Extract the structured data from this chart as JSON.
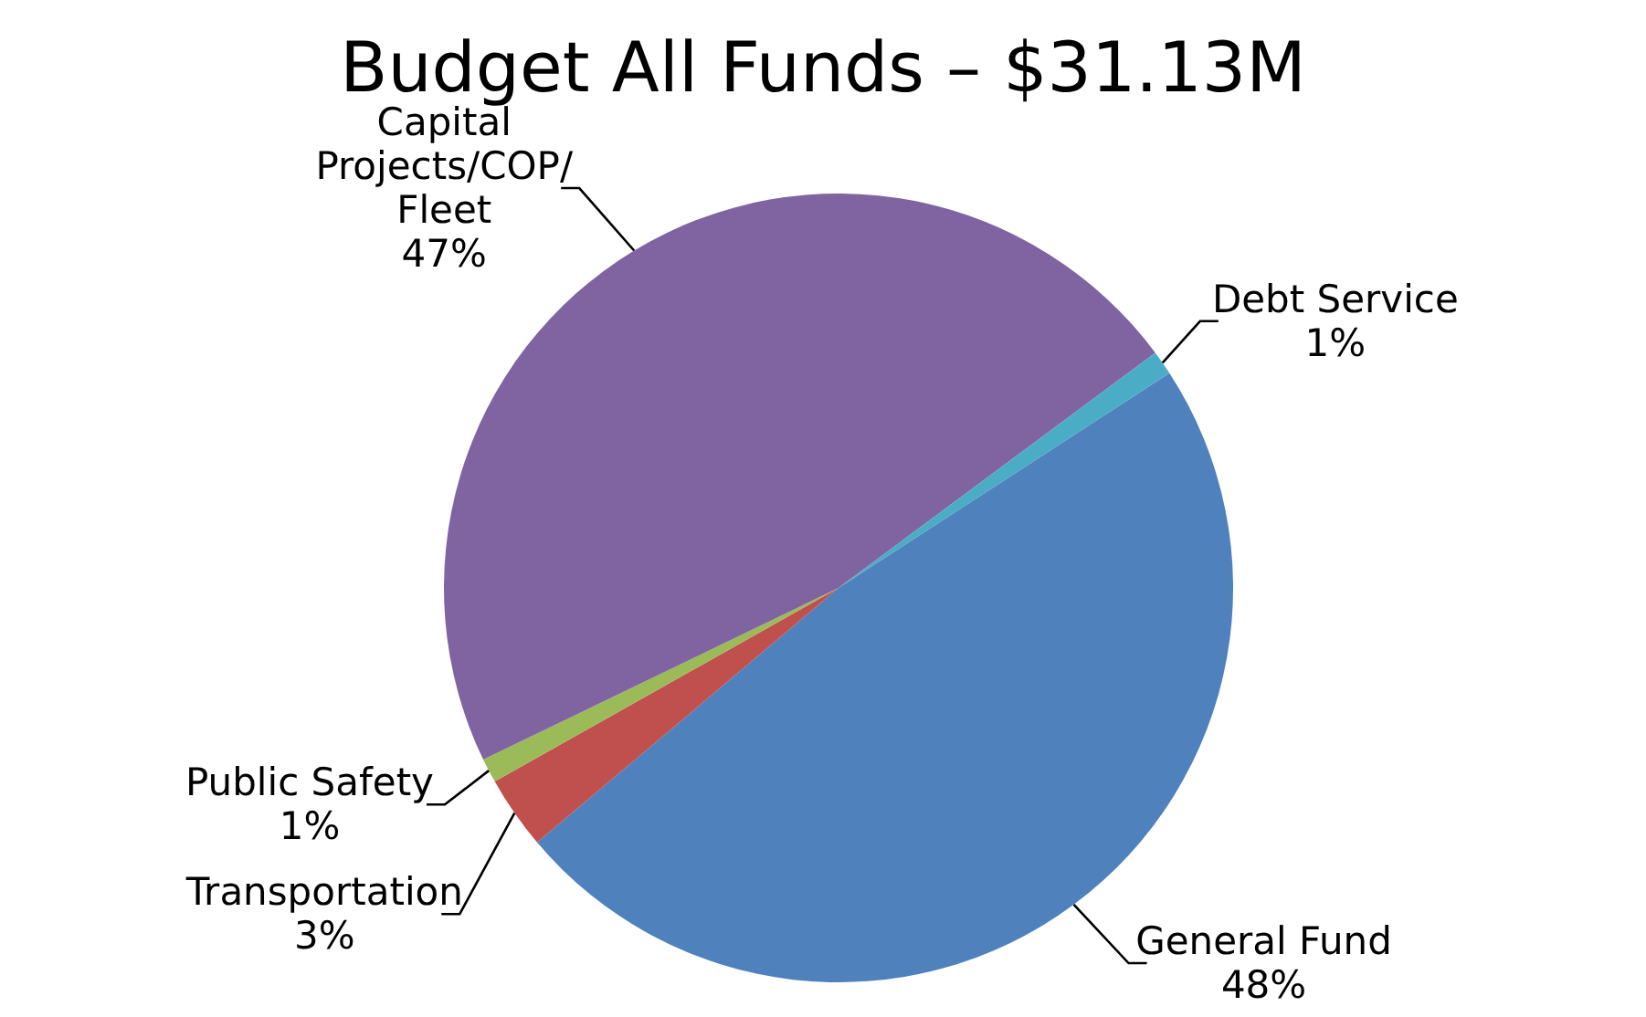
{
  "chart_data": {
    "type": "pie",
    "title": "Budget All Funds – $31.13M",
    "categories": [
      "General Fund",
      "Transportation",
      "Public Safety",
      "Capital Projects/COP/Fleet",
      "Debt Service"
    ],
    "values": [
      48,
      3,
      1,
      47,
      1
    ],
    "value_labels": [
      "48%",
      "3%",
      "1%",
      "47%",
      "1%"
    ],
    "colors": [
      "#4f81bd",
      "#c0504d",
      "#9bbb59",
      "#8064a2",
      "#4bacc6"
    ],
    "legend": false
  }
}
